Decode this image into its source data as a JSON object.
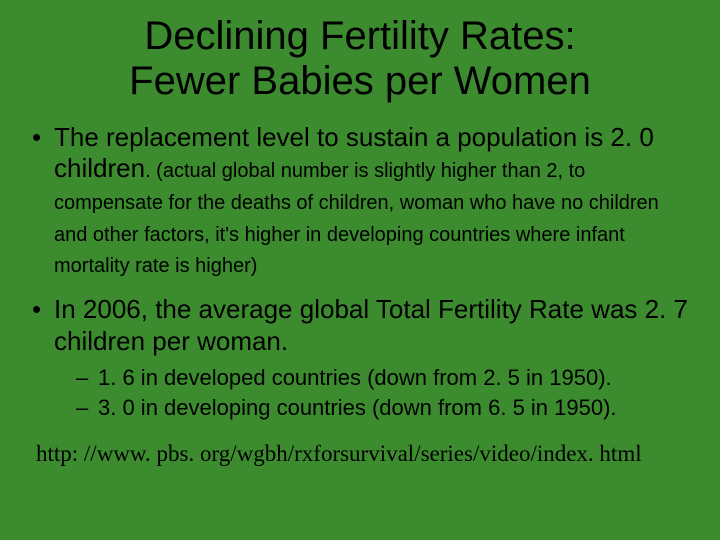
{
  "colors": {
    "background": "#3c8c2f",
    "text": "#000000"
  },
  "typography": {
    "body_font": "Comic Sans MS",
    "footer_font": "Times New Roman",
    "title_fontsize_pt": 40,
    "bullet_fontsize_pt": 26,
    "paren_fontsize_pt": 20,
    "sub_fontsize_pt": 22,
    "footer_fontsize_pt": 23
  },
  "title_line1": "Declining Fertility Rates:",
  "title_line2": "Fewer Babies per Women",
  "bullets": [
    {
      "main": "The replacement level to sustain a population is 2. 0 children",
      "paren": ". (actual global number is slightly higher than 2, to compensate for the deaths of children, woman who have no children and other factors, it's higher in developing countries where infant mortality rate is higher)"
    },
    {
      "main": "In 2006, the average global Total Fertility Rate was 2. 7 children per woman.",
      "sub": [
        "1. 6 in developed countries (down from 2. 5 in 1950).",
        "3. 0 in developing countries (down from 6. 5 in 1950)."
      ]
    }
  ],
  "footer_url": "http: //www. pbs. org/wgbh/rxforsurvival/series/video/index. html"
}
